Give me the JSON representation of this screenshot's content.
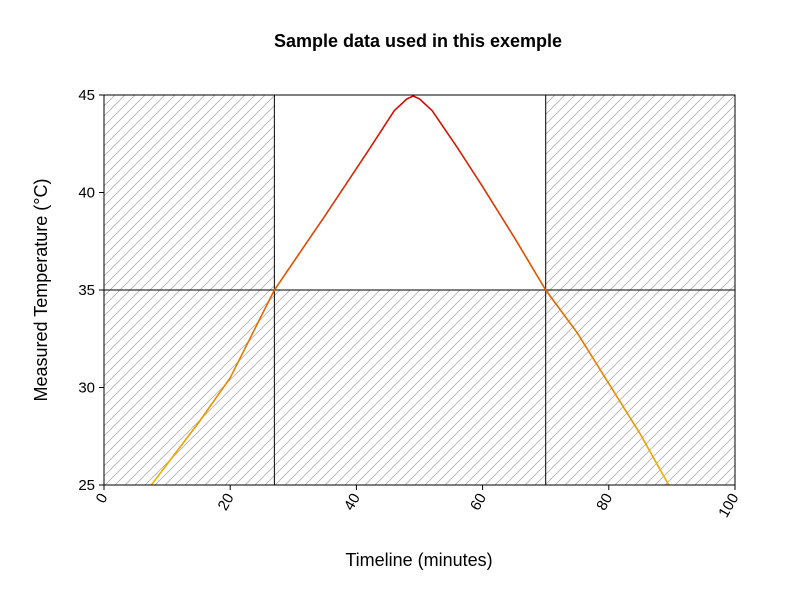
{
  "chart_data": {
    "type": "line",
    "title": "Sample data used in this exemple",
    "xlabel": "Timeline (minutes)",
    "ylabel": "Measured Temperature (°C)",
    "xlim": [
      0,
      100
    ],
    "ylim": [
      25,
      45
    ],
    "x_ticks": [
      "0",
      "20",
      "40",
      "60",
      "80",
      "100"
    ],
    "y_ticks": [
      "25",
      "30",
      "35",
      "40",
      "45"
    ],
    "grid": false,
    "thresholds": {
      "x_lines": [
        27,
        70
      ],
      "y_line": 35
    },
    "colors": {
      "low": "#f0b400",
      "mid": "#e06000",
      "high": "#d40000",
      "hatch": "#b0b0b0"
    },
    "series": [
      {
        "x": [
          7.5,
          15,
          20,
          27,
          35,
          42,
          46,
          48,
          49,
          50,
          52,
          56,
          60,
          65,
          70,
          75,
          80,
          85,
          89.5
        ],
        "y": [
          25,
          28.2,
          30.5,
          35,
          38.8,
          42.2,
          44.2,
          44.8,
          44.95,
          44.8,
          44.2,
          42.3,
          40.3,
          37.7,
          35,
          32.8,
          30.2,
          27.6,
          25
        ]
      }
    ]
  }
}
